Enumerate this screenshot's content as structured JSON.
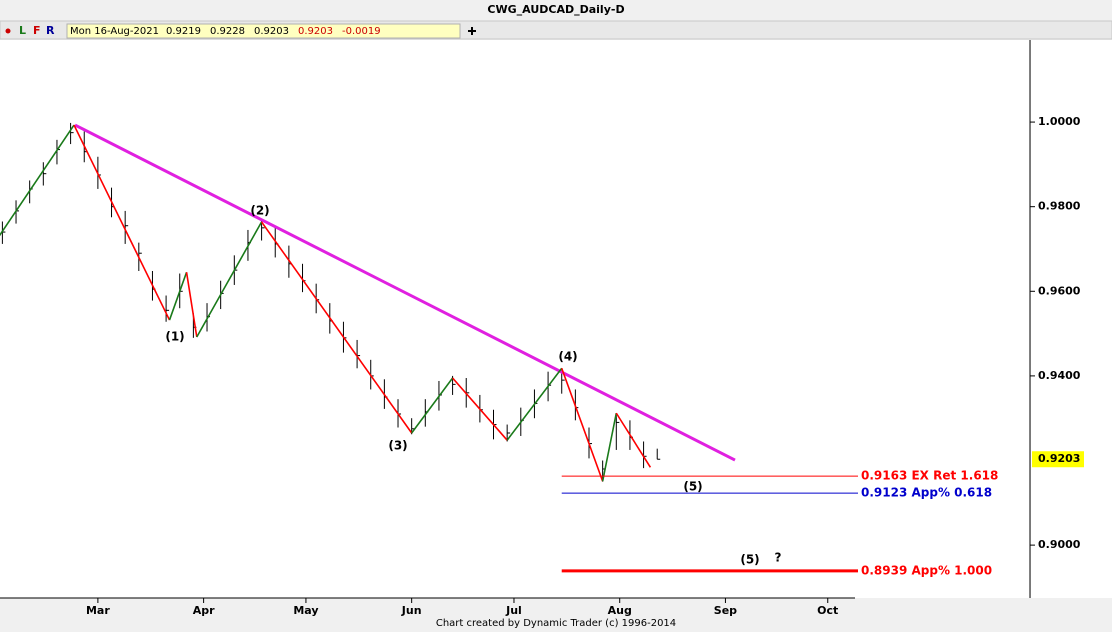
{
  "chart_data": {
    "type": "ohlc",
    "title": "CWG_AUDCAD_Daily-D",
    "toolbar": {
      "buttons": [
        "L",
        "F",
        "R"
      ],
      "date": "Mon 16-Aug-2021",
      "quotes": [
        "0.9219",
        "0.9228",
        "0.9203"
      ],
      "close": "0.9203",
      "change": "-0.0019"
    },
    "footer": "Chart created by Dynamic Trader  (c)  1996-2014",
    "xlim": [
      31.3,
      333.3
    ],
    "xticks": [
      {
        "value": 60,
        "label": "Mar"
      },
      {
        "value": 91,
        "label": "Apr"
      },
      {
        "value": 121,
        "label": "May"
      },
      {
        "value": 152,
        "label": "Jun"
      },
      {
        "value": 182,
        "label": "Jul"
      },
      {
        "value": 213,
        "label": "Aug"
      },
      {
        "value": 244,
        "label": "Sep"
      },
      {
        "value": 274,
        "label": "Oct"
      }
    ],
    "ylim": [
      0.8875,
      1.0194
    ],
    "yticks": [
      {
        "value": 1.0,
        "label": "1.0000"
      },
      {
        "value": 0.98,
        "label": "0.9800"
      },
      {
        "value": 0.96,
        "label": "0.9600"
      },
      {
        "value": 0.94,
        "label": "0.9400"
      },
      {
        "value": 0.9,
        "label": "0.9000"
      }
    ],
    "last_price": {
      "value": 0.9203,
      "label": "0.9203"
    },
    "bars": {
      "color": "#000000",
      "x": [
        32,
        36,
        40,
        44,
        48,
        52,
        56,
        60,
        64,
        68,
        72,
        76,
        80,
        84,
        88,
        92,
        96,
        100,
        104,
        108,
        112,
        116,
        120,
        124,
        128,
        132,
        136,
        140,
        144,
        148,
        152,
        156,
        160,
        164,
        168,
        172,
        176,
        180,
        184,
        188,
        192,
        196,
        200,
        204,
        208,
        212,
        216,
        220,
        224
      ],
      "high": [
        0.9765,
        0.9815,
        0.9862,
        0.9905,
        0.9958,
        0.9998,
        0.9978,
        0.9918,
        0.9845,
        0.979,
        0.9715,
        0.9648,
        0.959,
        0.9642,
        0.9548,
        0.9572,
        0.9625,
        0.9685,
        0.9745,
        0.9768,
        0.9752,
        0.9708,
        0.9665,
        0.9618,
        0.9572,
        0.9528,
        0.9485,
        0.9438,
        0.9392,
        0.9345,
        0.93,
        0.9345,
        0.9388,
        0.94,
        0.9395,
        0.9355,
        0.932,
        0.9285,
        0.9325,
        0.9368,
        0.941,
        0.9418,
        0.9368,
        0.9278,
        0.92,
        0.9312,
        0.9295,
        0.9245,
        0.9228
      ],
      "low": [
        0.9712,
        0.976,
        0.9808,
        0.985,
        0.99,
        0.9948,
        0.9905,
        0.9842,
        0.9775,
        0.9712,
        0.9648,
        0.9578,
        0.9528,
        0.956,
        0.949,
        0.9505,
        0.9558,
        0.9615,
        0.9672,
        0.972,
        0.968,
        0.9632,
        0.9598,
        0.9548,
        0.95,
        0.9455,
        0.9418,
        0.9368,
        0.9322,
        0.9278,
        0.9262,
        0.928,
        0.9318,
        0.9355,
        0.9325,
        0.929,
        0.925,
        0.9245,
        0.9258,
        0.93,
        0.934,
        0.9358,
        0.9295,
        0.9205,
        0.915,
        0.9225,
        0.9225,
        0.9182,
        0.9203
      ],
      "close": [
        0.974,
        0.979,
        0.9842,
        0.9878,
        0.9935,
        0.9975,
        0.993,
        0.9875,
        0.98,
        0.9755,
        0.969,
        0.9605,
        0.9555,
        0.96,
        0.9515,
        0.954,
        0.9595,
        0.965,
        0.9715,
        0.975,
        0.9712,
        0.9665,
        0.9625,
        0.958,
        0.953,
        0.949,
        0.9448,
        0.94,
        0.935,
        0.931,
        0.9275,
        0.9315,
        0.9355,
        0.938,
        0.936,
        0.932,
        0.9285,
        0.9265,
        0.9295,
        0.9335,
        0.9378,
        0.939,
        0.9325,
        0.924,
        0.918,
        0.929,
        0.9255,
        0.921,
        0.9203
      ]
    },
    "waves": {
      "up_color": "#1a7a1a",
      "down_color": "#ff0000",
      "x": [
        31,
        53,
        81,
        86,
        89,
        108,
        152,
        164,
        180,
        196,
        208,
        212,
        222
      ],
      "values": [
        0.973,
        0.9993,
        0.9532,
        0.9645,
        0.9492,
        0.9764,
        0.9265,
        0.9395,
        0.9248,
        0.9418,
        0.9151,
        0.9312,
        0.9184
      ]
    },
    "trendline": {
      "color": "#e020e0",
      "x": [
        53.3,
        246.8
      ],
      "values": [
        0.9993,
        0.9201
      ]
    },
    "levels": [
      {
        "value": 0.9163,
        "label": "0.9163 EX Ret 1.618",
        "color": "#ff0000",
        "from": 196
      },
      {
        "value": 0.9123,
        "label": "0.9123 App% 0.618",
        "color": "#0000cc",
        "from": 196
      },
      {
        "value": 0.8939,
        "label": "0.8939 App% 1.000",
        "color": "#ff0000",
        "from": 196,
        "thick": true
      }
    ],
    "annotations": [
      "(1)",
      "(2)",
      "(3)",
      "(4)",
      "(5)",
      "(5)",
      "?"
    ]
  }
}
